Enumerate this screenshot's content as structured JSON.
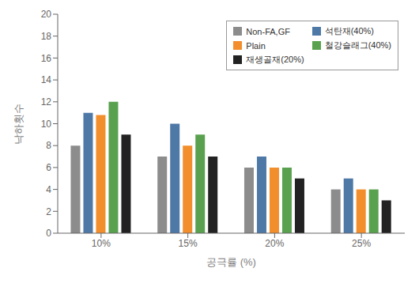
{
  "chart_data": {
    "type": "bar",
    "categories": [
      "10%",
      "15%",
      "20%",
      "25%"
    ],
    "series": [
      {
        "name": "Non-FA,GF",
        "color": "#8c8c8c",
        "values": [
          8,
          7,
          6,
          4
        ]
      },
      {
        "name": "석탄재(40%)",
        "color": "#4e79a7",
        "values": [
          11,
          10,
          7,
          5
        ]
      },
      {
        "name": "Plain",
        "color": "#f28e2b",
        "values": [
          10.8,
          8,
          6,
          4
        ]
      },
      {
        "name": "철강슬래그(40%)",
        "color": "#59a14f",
        "values": [
          12,
          9,
          6,
          4
        ]
      },
      {
        "name": "재생골재(20%)",
        "color": "#222222",
        "values": [
          9,
          7,
          5,
          3
        ]
      }
    ],
    "xlabel": "공극률 (%)",
    "ylabel": "낙하횟수",
    "ylim": [
      0,
      20
    ],
    "yticks": [
      0,
      2,
      4,
      6,
      8,
      10,
      12,
      14,
      16,
      18,
      20
    ],
    "grid": false,
    "legend": "upper right"
  }
}
